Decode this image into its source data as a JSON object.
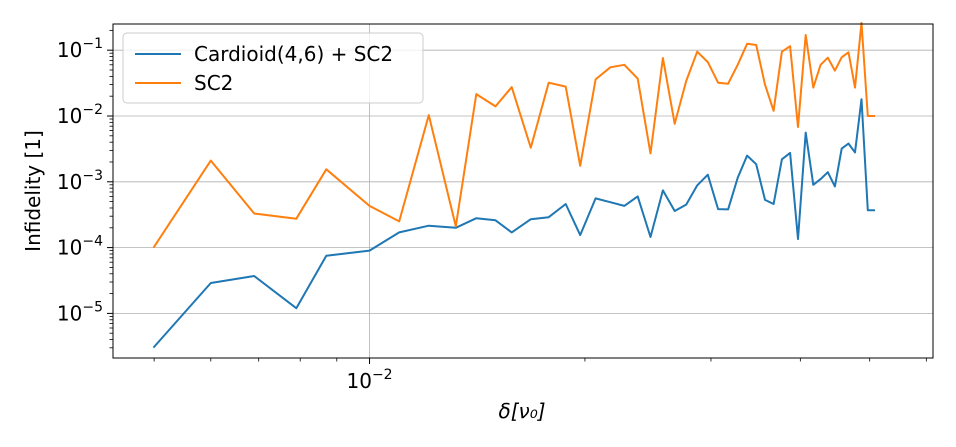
{
  "chart_data": {
    "type": "line",
    "xlabel": "δ[ν₀]",
    "ylabel": "Infidelity [1]",
    "xscale": "log",
    "yscale": "log",
    "xlim": [
      0.00438,
      0.0613
    ],
    "ylim": [
      2.1e-06,
      0.25
    ],
    "x_tick_label": {
      "base": "10",
      "exp": "−2"
    },
    "y_tick_labels": [
      {
        "base": "10",
        "exp": "−1"
      },
      {
        "base": "10",
        "exp": "−2"
      },
      {
        "base": "10",
        "exp": "−3"
      },
      {
        "base": "10",
        "exp": "−4"
      },
      {
        "base": "10",
        "exp": "−5"
      }
    ],
    "grid": "major",
    "legend": "top-left",
    "x": [
      0.005,
      0.006,
      0.0069,
      0.0079,
      0.0087,
      0.01,
      0.011,
      0.0121,
      0.0132,
      0.0141,
      0.015,
      0.0158,
      0.0168,
      0.0178,
      0.0188,
      0.0197,
      0.0207,
      0.0217,
      0.0227,
      0.0237,
      0.0247,
      0.0257,
      0.0267,
      0.0277,
      0.0287,
      0.0297,
      0.0307,
      0.0317,
      0.0327,
      0.0337,
      0.0347,
      0.0357,
      0.0367,
      0.0377,
      0.0387,
      0.0397,
      0.0407,
      0.0417,
      0.0427,
      0.0437,
      0.0447,
      0.0457,
      0.0467,
      0.0477,
      0.0487,
      0.0497,
      0.0507
    ],
    "series": [
      {
        "name": "Cardioid(4,6) + SC2",
        "color": "#1f77b4",
        "values": [
          3.1e-06,
          2.9e-05,
          3.7e-05,
          1.2e-05,
          7.5e-05,
          9e-05,
          0.00017,
          0.000215,
          0.0002,
          0.00028,
          0.00026,
          0.00017,
          0.00027,
          0.00029,
          0.00046,
          0.000155,
          0.00056,
          0.00049,
          0.00043,
          0.0006,
          0.000145,
          0.00074,
          0.00036,
          0.00045,
          0.00088,
          0.00128,
          0.000385,
          0.00038,
          0.00115,
          0.0025,
          0.00185,
          0.00053,
          0.00046,
          0.0022,
          0.00275,
          0.000135,
          0.0056,
          0.0009,
          0.0011,
          0.0014,
          0.00085,
          0.0032,
          0.0038,
          0.0028,
          0.018,
          0.00037,
          0.00037
        ]
      },
      {
        "name": "SC2",
        "color": "#ff7f0e",
        "values": [
          0.000103,
          0.0021,
          0.00033,
          0.000275,
          0.00155,
          0.00043,
          0.00025,
          0.0103,
          0.00021,
          0.0215,
          0.014,
          0.0275,
          0.0033,
          0.032,
          0.028,
          0.00175,
          0.036,
          0.055,
          0.06,
          0.037,
          0.0027,
          0.076,
          0.0076,
          0.034,
          0.095,
          0.066,
          0.032,
          0.031,
          0.06,
          0.125,
          0.12,
          0.03,
          0.012,
          0.095,
          0.115,
          0.0068,
          0.17,
          0.027,
          0.06,
          0.077,
          0.049,
          0.078,
          0.093,
          0.027,
          0.26,
          0.01,
          0.01
        ]
      }
    ]
  }
}
